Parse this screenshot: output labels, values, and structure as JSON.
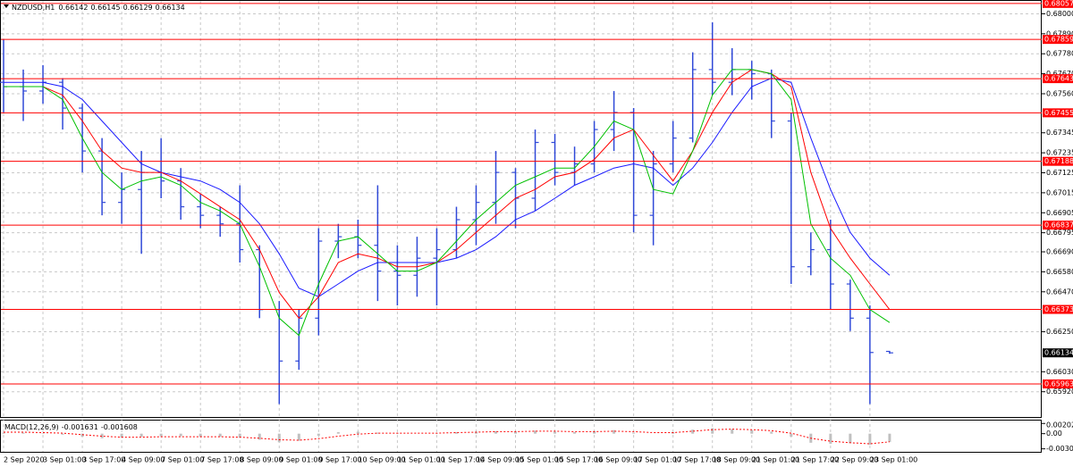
{
  "chart_data": [
    {
      "type": "ohlc",
      "title": "NZDUSD,H1",
      "categories": [
        "2 Sep 2020",
        null,
        "3 Sep 01:00",
        null,
        "3 Sep 17:00",
        null,
        "4 Sep 09:00",
        null,
        "7 Sep 01:00",
        null,
        "7 Sep 17:00",
        null,
        "8 Sep 09:00",
        null,
        "9 Sep 01:00",
        null,
        "9 Sep 17:00",
        null,
        "10 Sep 09:00",
        null,
        "11 Sep 01:00",
        null,
        "11 Sep 17:00",
        null,
        "14 Sep 09:00",
        null,
        "15 Sep 01:00",
        null,
        "15 Sep 17:00",
        null,
        "16 Sep 09:00",
        null,
        "17 Sep 01:00",
        null,
        "17 Sep 17:00",
        null,
        "18 Sep 09:00",
        null,
        "21 Sep 01:00",
        null,
        "21 Sep 17:00",
        null,
        "22 Sep 09:00",
        null,
        "23 Sep 01:00",
        null
      ],
      "open": [
        0.67623,
        0.67599,
        0.67575,
        0.67623,
        0.67481,
        0.67245,
        0.66962,
        0.67033,
        0.67127,
        0.6708,
        0.66938,
        0.66891,
        0.66844,
        0.66702,
        0.66372,
        0.66089,
        0.66325,
        0.66749,
        0.66773,
        0.66726,
        0.66584,
        0.66561,
        0.66655,
        0.66702,
        0.66867,
        0.66962,
        0.67127,
        0.66985,
        0.67292,
        0.67127,
        0.67174,
        0.67363,
        0.67457,
        0.66891,
        0.67174,
        0.67316,
        0.67693,
        0.67623,
        0.67693,
        0.6767,
        0.6741,
        0.66608,
        0.66702,
        0.66513,
        0.66325,
        0.66142
      ],
      "high": [
        0.67858,
        0.67693,
        0.67717,
        0.67646,
        0.67505,
        0.67316,
        0.67127,
        0.67245,
        0.67316,
        0.67151,
        0.67009,
        0.66938,
        0.67056,
        0.66726,
        0.66419,
        0.66372,
        0.6682,
        0.66844,
        0.66867,
        0.67056,
        0.66726,
        0.66773,
        0.6682,
        0.66938,
        0.67056,
        0.67245,
        0.67151,
        0.67363,
        0.67339,
        0.67269,
        0.6741,
        0.67575,
        0.67481,
        0.67245,
        0.6741,
        0.67788,
        0.67953,
        0.67811,
        0.67741,
        0.67693,
        0.67457,
        0.66797,
        0.66867,
        0.66537,
        0.66395,
        0.66145
      ],
      "low": [
        0.67457,
        0.6741,
        0.67505,
        0.67363,
        0.67127,
        0.66891,
        0.66844,
        0.66679,
        0.66985,
        0.66867,
        0.6682,
        0.66773,
        0.66631,
        0.66325,
        0.65852,
        0.66041,
        0.6623,
        0.66655,
        0.66655,
        0.66419,
        0.66395,
        0.66443,
        0.66395,
        0.66655,
        0.66726,
        0.66844,
        0.6682,
        0.66915,
        0.67056,
        0.67056,
        0.67127,
        0.67245,
        0.66797,
        0.66726,
        0.67127,
        0.67292,
        0.67552,
        0.67552,
        0.67528,
        0.67316,
        0.66513,
        0.66561,
        0.66372,
        0.66254,
        0.65852,
        0.66129
      ],
      "close": [
        0.67599,
        0.67575,
        0.67623,
        0.67481,
        0.67245,
        0.66962,
        0.67033,
        0.67127,
        0.6708,
        0.66938,
        0.66891,
        0.66844,
        0.66702,
        0.66372,
        0.66089,
        0.66325,
        0.66749,
        0.66773,
        0.66726,
        0.66584,
        0.66561,
        0.66655,
        0.66702,
        0.66867,
        0.66962,
        0.67127,
        0.66985,
        0.67292,
        0.67127,
        0.67174,
        0.67363,
        0.67457,
        0.66891,
        0.67174,
        0.67316,
        0.67693,
        0.67623,
        0.67693,
        0.6767,
        0.6741,
        0.66608,
        0.66702,
        0.66513,
        0.66325,
        0.66136,
        0.66134
      ],
      "color": "#3049d8",
      "lines": [
        {
          "color": "#1a1aff",
          "values": [
            0.67623,
            0.67623,
            0.67623,
            0.67599,
            0.67528,
            0.6741,
            0.67292,
            0.67174,
            0.67127,
            0.67103,
            0.6708,
            0.67033,
            0.66962,
            0.66844,
            0.66679,
            0.6649,
            0.66443,
            0.66513,
            0.66584,
            0.66631,
            0.66631,
            0.66631,
            0.66631,
            0.66655,
            0.66702,
            0.66773,
            0.66867,
            0.66915,
            0.66985,
            0.67056,
            0.67103,
            0.67151,
            0.67174,
            0.67151,
            0.67056,
            0.67151,
            0.67292,
            0.67457,
            0.67599,
            0.67646,
            0.67623,
            0.67316,
            0.67033,
            0.66797,
            0.66655,
            0.66561
          ]
        },
        {
          "color": "#ff0000",
          "values": [
            0.67599,
            0.67599,
            0.67599,
            0.67552,
            0.6741,
            0.67245,
            0.67151,
            0.67127,
            0.67127,
            0.6708,
            0.67009,
            0.66938,
            0.66867,
            0.66702,
            0.66466,
            0.66325,
            0.66443,
            0.66631,
            0.66679,
            0.66655,
            0.66608,
            0.66608,
            0.66631,
            0.66702,
            0.66797,
            0.66891,
            0.66985,
            0.67033,
            0.67103,
            0.67127,
            0.67198,
            0.67316,
            0.67363,
            0.67221,
            0.6708,
            0.67245,
            0.67457,
            0.67623,
            0.67693,
            0.6767,
            0.67599,
            0.67127,
            0.6682,
            0.66655,
            0.66513,
            0.66372
          ]
        },
        {
          "color": "#00c000",
          "values": [
            0.67599,
            0.67599,
            0.67599,
            0.67528,
            0.67316,
            0.67127,
            0.67033,
            0.6708,
            0.67103,
            0.67056,
            0.66962,
            0.66915,
            0.66844,
            0.66608,
            0.66325,
            0.6623,
            0.66513,
            0.66749,
            0.66773,
            0.66679,
            0.66584,
            0.66584,
            0.66631,
            0.66749,
            0.66867,
            0.66962,
            0.67056,
            0.67103,
            0.67151,
            0.67151,
            0.67269,
            0.6741,
            0.67363,
            0.67033,
            0.67009,
            0.67245,
            0.67552,
            0.67693,
            0.67693,
            0.6767,
            0.67528,
            0.66844,
            0.66655,
            0.66561,
            0.66372,
            0.66301
          ]
        }
      ],
      "ylim": [
        0.65781,
        0.68071
      ],
      "yticks": [
        {
          "value": 0.68,
          "label": "0.68000"
        },
        {
          "value": 0.6789,
          "label": "0.67890"
        },
        {
          "value": 0.6778,
          "label": "0.67780"
        },
        {
          "value": 0.6767,
          "label": "0.67670"
        },
        {
          "value": 0.6756,
          "label": "0.67560"
        },
        0.67345,
        0.67235,
        0.67125,
        0.67015,
        0.66905,
        0.66795,
        {
          "value": 0.6669,
          "label": "0.66690"
        },
        {
          "value": 0.6658,
          "label": "0.66580"
        },
        {
          "value": 0.6647,
          "label": "0.66470"
        },
        {
          "value": 0.6625,
          "label": "0.66250"
        },
        {
          "value": 0.6603,
          "label": "0.66030"
        },
        {
          "value": 0.6592,
          "label": "0.65920"
        }
      ],
      "levels": [
        0.68057,
        0.67859,
        0.67643,
        0.67455,
        0.67188,
        0.66837,
        0.66373,
        0.65963
      ],
      "level_color": "#ff0000",
      "last_price": 0.66134,
      "grid": true
    },
    {
      "type": "macd",
      "title": "MACD(12,26,9)",
      "values": [
        0.0002,
        0.0002,
        0.0001,
        -0.0002,
        -0.0006,
        -0.0009,
        -0.0008,
        -0.0006,
        -0.0005,
        -0.0005,
        -0.0006,
        -0.0006,
        -0.0008,
        -0.0012,
        -0.0017,
        -0.0014,
        -0.0004,
        0.0003,
        0.0004,
        0.0002,
        0.0001,
        0.0,
        0.0001,
        0.0003,
        0.0004,
        0.0005,
        0.0004,
        0.0006,
        0.0004,
        0.0003,
        0.0005,
        0.0007,
        0.0002,
        0.0,
        0.0003,
        0.0008,
        0.0011,
        0.0009,
        0.0007,
        0.0004,
        -0.0006,
        -0.0018,
        -0.002,
        -0.0019,
        -0.0022,
        -0.001631
      ],
      "signal": [
        0.0003,
        0.0003,
        0.0002,
        0.0001,
        -0.0002,
        -0.0005,
        -0.0007,
        -0.0007,
        -0.0006,
        -0.0006,
        -0.0006,
        -0.0006,
        -0.0007,
        -0.0009,
        -0.0012,
        -0.0013,
        -0.001,
        -0.0005,
        -0.0001,
        0.0001,
        0.0001,
        0.0001,
        0.0001,
        0.0002,
        0.0003,
        0.0004,
        0.0004,
        0.0005,
        0.0005,
        0.0004,
        0.0004,
        0.0005,
        0.0004,
        0.0002,
        0.0002,
        0.0005,
        0.0008,
        0.0009,
        0.0008,
        0.0006,
        0.0001,
        -0.0009,
        -0.0015,
        -0.0018,
        -0.002,
        -0.001608
      ],
      "color": "#c0c0c0",
      "signal_color": "#ff0000",
      "ylim": [
        -0.0036,
        0.0026
      ],
      "yticks": [
        0.002024,
        {
          "value": 0,
          "label": "0.00"
        },
        -0.003008
      ]
    }
  ]
}
